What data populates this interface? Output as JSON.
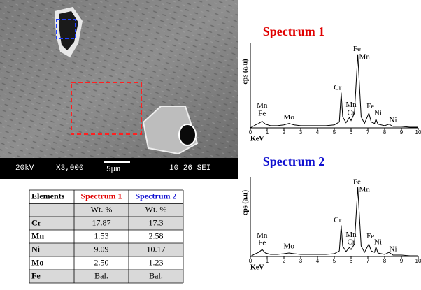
{
  "sem_image": {
    "labels": [
      "20kV",
      "X3,000",
      "5μm",
      "10 26 SEI"
    ]
  },
  "table": {
    "header": [
      "Elements",
      "Spectrum 1",
      "Spectrum 2"
    ],
    "units": [
      "Wt. %",
      "Wt. %"
    ],
    "rows": [
      [
        "Cr",
        "17.87",
        "17.3"
      ],
      [
        "Mn",
        "1.53",
        "2.58"
      ],
      [
        "Ni",
        "9.09",
        "10.17"
      ],
      [
        "Mo",
        "2.50",
        "1.23"
      ],
      [
        "Fe",
        "Bal.",
        "Bal."
      ]
    ]
  },
  "chart_data": [
    {
      "type": "line",
      "title": "Spectrum 1",
      "title_color": "#e00000",
      "x_label": "KeV",
      "y_label": "cps (a.u)",
      "x": [
        0,
        0.3,
        0.5,
        0.7,
        0.9,
        1.2,
        1.6,
        2.0,
        2.3,
        2.6,
        3.0,
        3.5,
        4.0,
        4.5,
        5.0,
        5.3,
        5.41,
        5.5,
        5.7,
        5.9,
        6.0,
        6.2,
        6.4,
        6.6,
        6.8,
        7.06,
        7.2,
        7.4,
        7.48,
        7.6,
        8.0,
        8.26,
        8.5,
        9.0,
        9.5,
        10
      ],
      "series": [
        {
          "color": "#000000",
          "values": [
            0,
            4,
            6,
            9,
            5,
            3,
            3,
            4,
            6,
            4,
            3,
            3,
            3,
            3,
            4,
            8,
            48,
            15,
            7,
            14,
            10,
            20,
            100,
            15,
            6,
            20,
            8,
            6,
            12,
            5,
            3,
            5,
            2,
            2,
            1,
            1
          ]
        }
      ],
      "xlim": [
        0,
        10
      ],
      "xticks": [
        0,
        1,
        2,
        3,
        4,
        5,
        6,
        7,
        8,
        9,
        10
      ],
      "ylim": [
        0,
        115
      ],
      "annotations": [
        {
          "text": "Mn",
          "x": 0.7,
          "y": 30
        },
        {
          "text": "Fe",
          "x": 0.7,
          "y": 19
        },
        {
          "text": "Mo",
          "x": 2.3,
          "y": 14
        },
        {
          "text": "Cr",
          "x": 5.2,
          "y": 54
        },
        {
          "text": "Mn",
          "x": 6.0,
          "y": 31
        },
        {
          "text": "Cr",
          "x": 6.0,
          "y": 20
        },
        {
          "text": "Fe",
          "x": 6.35,
          "y": 107
        },
        {
          "text": "Mn",
          "x": 6.8,
          "y": 96
        },
        {
          "text": "Fe",
          "x": 7.15,
          "y": 29
        },
        {
          "text": "Ni",
          "x": 7.6,
          "y": 20
        },
        {
          "text": "Ni",
          "x": 8.5,
          "y": 10
        }
      ]
    },
    {
      "type": "line",
      "title": "Spectrum 2",
      "title_color": "#1010d0",
      "x_label": "KeV",
      "y_label": "cps (a.u)",
      "x": [
        0,
        0.3,
        0.5,
        0.7,
        0.9,
        1.2,
        1.6,
        2.0,
        2.3,
        2.6,
        3.0,
        3.5,
        4.0,
        4.5,
        5.0,
        5.3,
        5.41,
        5.5,
        5.7,
        5.9,
        6.0,
        6.2,
        6.4,
        6.6,
        6.8,
        7.06,
        7.2,
        7.4,
        7.48,
        7.6,
        8.0,
        8.26,
        8.5,
        9.0,
        9.5,
        10
      ],
      "series": [
        {
          "color": "#000000",
          "values": [
            0,
            4,
            6,
            10,
            5,
            3,
            3,
            4,
            5,
            4,
            3,
            3,
            3,
            3,
            4,
            8,
            45,
            15,
            7,
            13,
            10,
            18,
            100,
            15,
            6,
            18,
            8,
            6,
            14,
            5,
            3,
            6,
            2,
            2,
            1,
            1
          ]
        }
      ],
      "xlim": [
        0,
        10
      ],
      "xticks": [
        0,
        1,
        2,
        3,
        4,
        5,
        6,
        7,
        8,
        9,
        10
      ],
      "ylim": [
        0,
        115
      ],
      "annotations": [
        {
          "text": "Mn",
          "x": 0.7,
          "y": 30
        },
        {
          "text": "Fe",
          "x": 0.7,
          "y": 19
        },
        {
          "text": "Mo",
          "x": 2.3,
          "y": 14
        },
        {
          "text": "Cr",
          "x": 5.2,
          "y": 52
        },
        {
          "text": "Mn",
          "x": 6.0,
          "y": 31
        },
        {
          "text": "Cr",
          "x": 6.0,
          "y": 20
        },
        {
          "text": "Fe",
          "x": 6.35,
          "y": 107
        },
        {
          "text": "Mn",
          "x": 6.8,
          "y": 96
        },
        {
          "text": "Fe",
          "x": 7.15,
          "y": 29
        },
        {
          "text": "Ni",
          "x": 7.6,
          "y": 20
        },
        {
          "text": "Ni",
          "x": 8.5,
          "y": 10
        }
      ]
    }
  ]
}
